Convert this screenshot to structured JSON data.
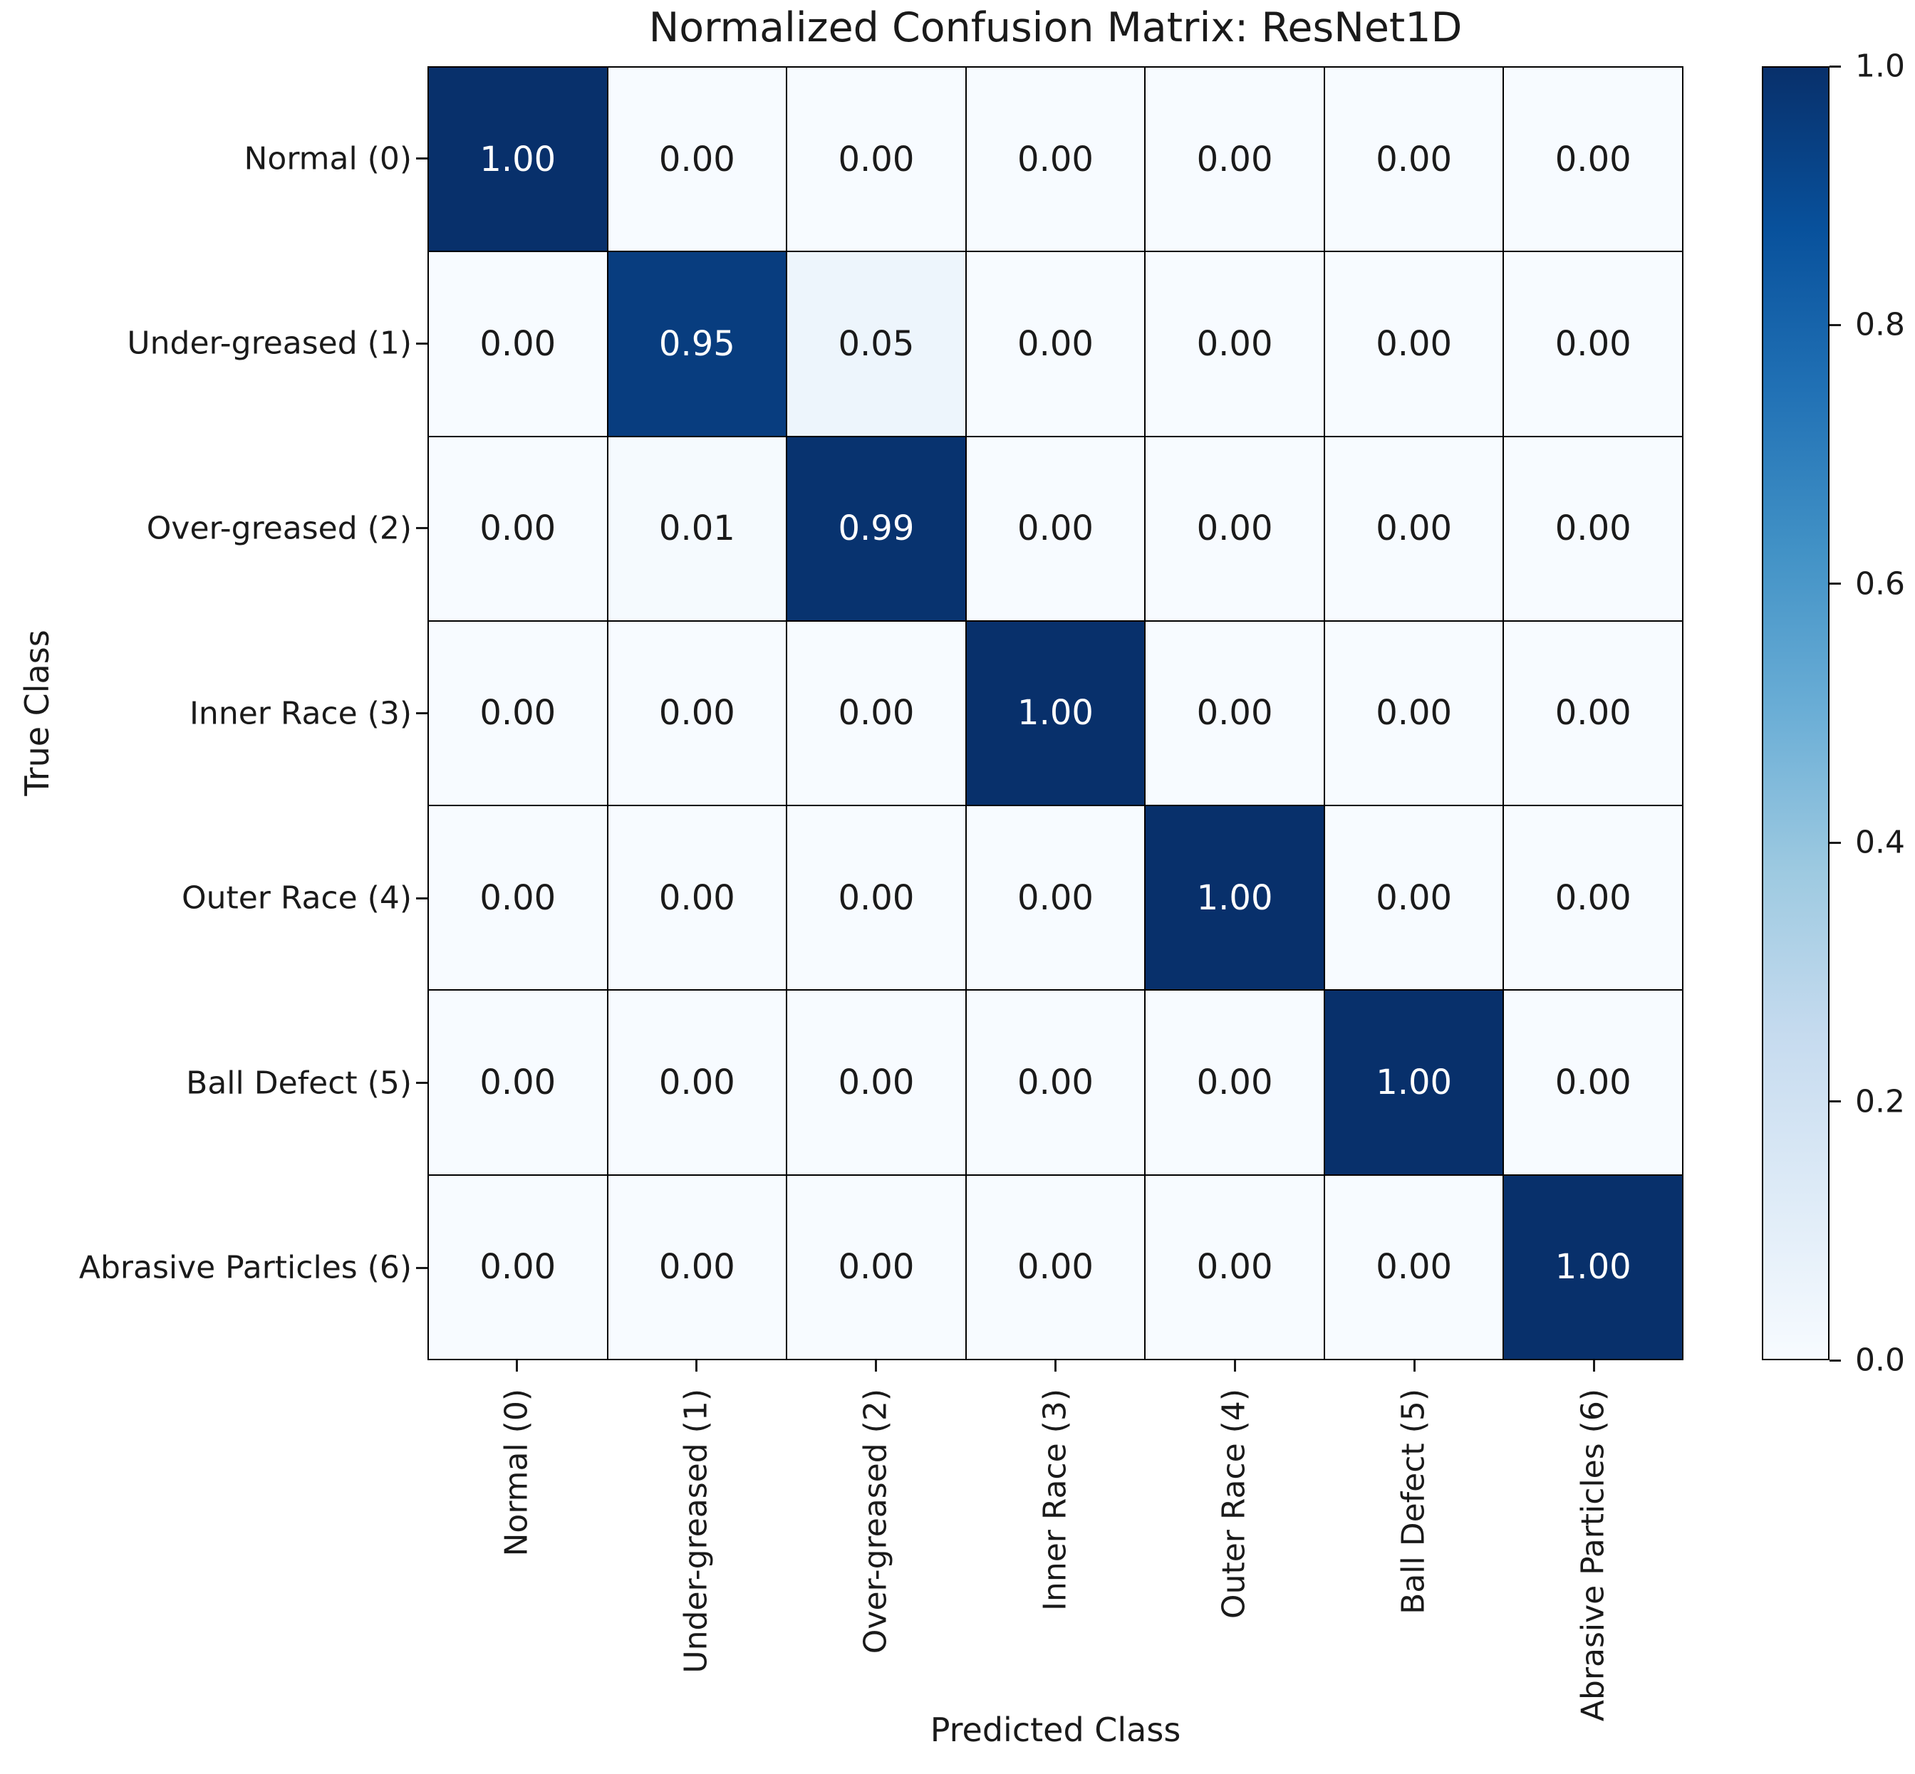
{
  "figure": {
    "title": "Normalized Confusion Matrix: ResNet1D",
    "xlabel": "Predicted Class",
    "ylabel": "True Class"
  },
  "chart_data": {
    "type": "heatmap",
    "title": "Normalized Confusion Matrix: ResNet1D",
    "xlabel": "Predicted Class",
    "ylabel": "True Class",
    "x_tick_labels": [
      "Normal (0)",
      "Under-greased (1)",
      "Over-greased (2)",
      "Inner Race (3)",
      "Outer Race (4)",
      "Ball Defect (5)",
      "Abrasive Particles (6)"
    ],
    "y_tick_labels": [
      "Normal (0)",
      "Under-greased (1)",
      "Over-greased (2)",
      "Inner Race (3)",
      "Outer Race (4)",
      "Ball Defect (5)",
      "Abrasive Particles (6)"
    ],
    "matrix": [
      [
        1.0,
        0.0,
        0.0,
        0.0,
        0.0,
        0.0,
        0.0
      ],
      [
        0.0,
        0.95,
        0.05,
        0.0,
        0.0,
        0.0,
        0.0
      ],
      [
        0.0,
        0.01,
        0.99,
        0.0,
        0.0,
        0.0,
        0.0
      ],
      [
        0.0,
        0.0,
        0.0,
        1.0,
        0.0,
        0.0,
        0.0
      ],
      [
        0.0,
        0.0,
        0.0,
        0.0,
        1.0,
        0.0,
        0.0
      ],
      [
        0.0,
        0.0,
        0.0,
        0.0,
        0.0,
        1.0,
        0.0
      ],
      [
        0.0,
        0.0,
        0.0,
        0.0,
        0.0,
        0.0,
        1.0
      ]
    ],
    "value_format_decimals": 2,
    "vmin": 0.0,
    "vmax": 1.0,
    "colormap": "Blues",
    "grid_on": false,
    "legend_position": "right-colorbar",
    "colorbar": {
      "tick_labels": [
        "1.0",
        "0.8",
        "0.6",
        "0.4",
        "0.2",
        "0.0"
      ],
      "tick_values": [
        1.0,
        0.8,
        0.6,
        0.4,
        0.2,
        0.0
      ]
    },
    "colors": {
      "cmap_stops": [
        "#f7fbff",
        "#deebf7",
        "#c6dbef",
        "#9ecae1",
        "#6baed6",
        "#4292c6",
        "#2171b5",
        "#08519c",
        "#08306b"
      ],
      "gridline": "#000000",
      "annotation_dark": "#1a1a1a",
      "annotation_light": "#ffffff",
      "background": "#ffffff"
    }
  }
}
